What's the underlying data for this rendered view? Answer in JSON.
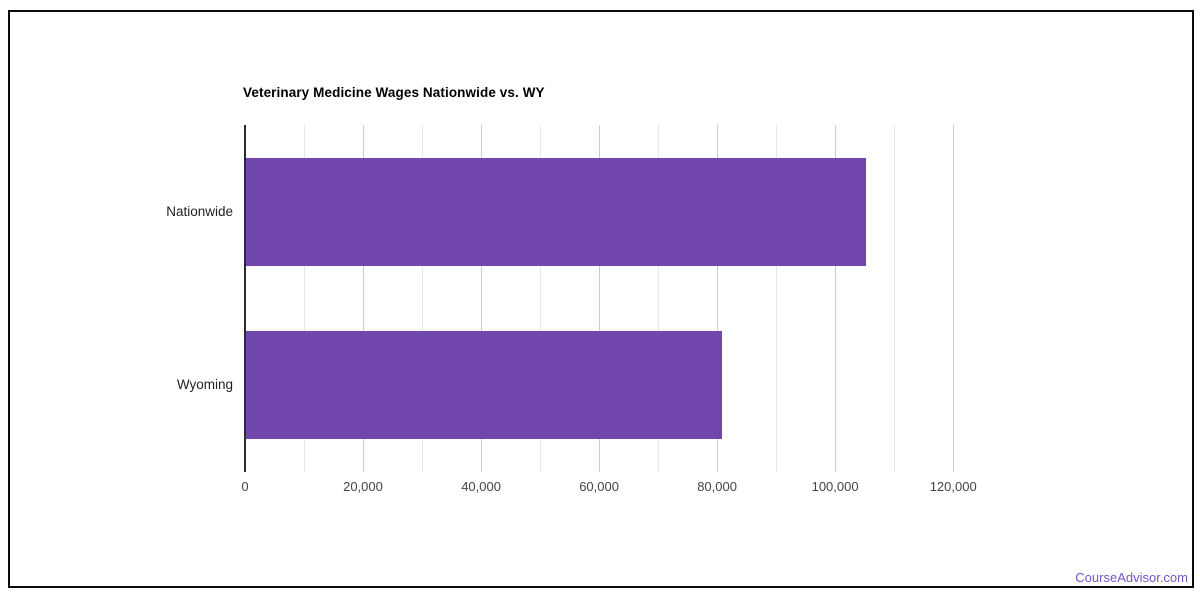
{
  "page": {
    "background": "#ffffff",
    "frame_border_color": "#0a0a0a"
  },
  "chart_data": {
    "type": "bar",
    "orientation": "horizontal",
    "title": "Veterinary Medicine Wages Nationwide vs. WY",
    "categories": [
      "Nationwide",
      "Wyoming"
    ],
    "values": [
      105000,
      80600
    ],
    "xlabel": "",
    "ylabel": "",
    "xlim": [
      0,
      129800
    ],
    "x_ticks": [
      0,
      20000,
      40000,
      60000,
      80000,
      100000,
      120000
    ],
    "x_tick_labels": [
      "0",
      "20,000",
      "40,000",
      "60,000",
      "80,000",
      "100,000",
      "120,000"
    ],
    "minor_grid_interval": 10000,
    "major_grid_interval": 20000,
    "grid": "on",
    "legend": "none",
    "bar_color": "#7146ad",
    "axis_line_color": "#2b2b2b",
    "grid_major_color": "#cccccc",
    "grid_minor_color": "#e7e7e7",
    "tick_label_color": "#444444",
    "category_label_color": "#1f1f1f"
  },
  "footer": {
    "link_label": "CourseAdvisor.com",
    "link_color": "#7a52c8"
  }
}
